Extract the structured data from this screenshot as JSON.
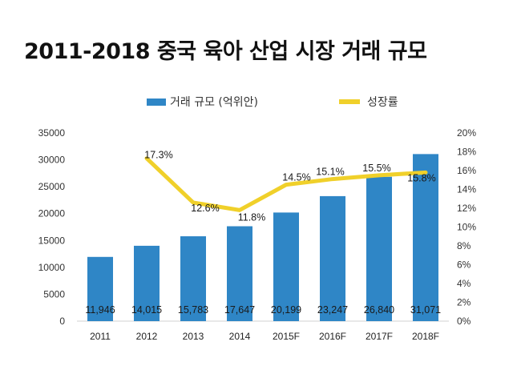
{
  "chart_data": {
    "type": "bar",
    "title": "2011-2018 중국 육아 산업 시장 거래 규모",
    "categories": [
      "2011",
      "2012",
      "2013",
      "2014",
      "2015F",
      "2016F",
      "2017F",
      "2018F"
    ],
    "series": [
      {
        "name": "거래 규모 (억위안)",
        "type": "bar",
        "axis": "left",
        "color": "#2f86c6",
        "values": [
          11946,
          14015,
          15783,
          17647,
          20199,
          23247,
          26840,
          31071
        ],
        "labels": [
          "11,946",
          "14,015",
          "15,783",
          "17,647",
          "20,199",
          "23,247",
          "26,840",
          "31,071"
        ]
      },
      {
        "name": "성장률",
        "type": "line",
        "axis": "right",
        "color": "#f0d02a",
        "values": [
          null,
          17.3,
          12.6,
          11.8,
          14.5,
          15.1,
          15.5,
          15.8
        ],
        "labels": [
          "",
          "17.3%",
          "12.6%",
          "11.8%",
          "14.5%",
          "15.1%",
          "15.5%",
          "15.8%"
        ]
      }
    ],
    "ylim": [
      0,
      35000
    ],
    "y_ticks": [
      "0",
      "5000",
      "10000",
      "15000",
      "20000",
      "25000",
      "30000",
      "35000"
    ],
    "y2lim": [
      0,
      20
    ],
    "y2_ticks": [
      "0%",
      "2%",
      "4%",
      "6%",
      "8%",
      "10%",
      "12%",
      "14%",
      "16%",
      "18%",
      "20%"
    ],
    "legend_position": "top",
    "grid": false
  }
}
